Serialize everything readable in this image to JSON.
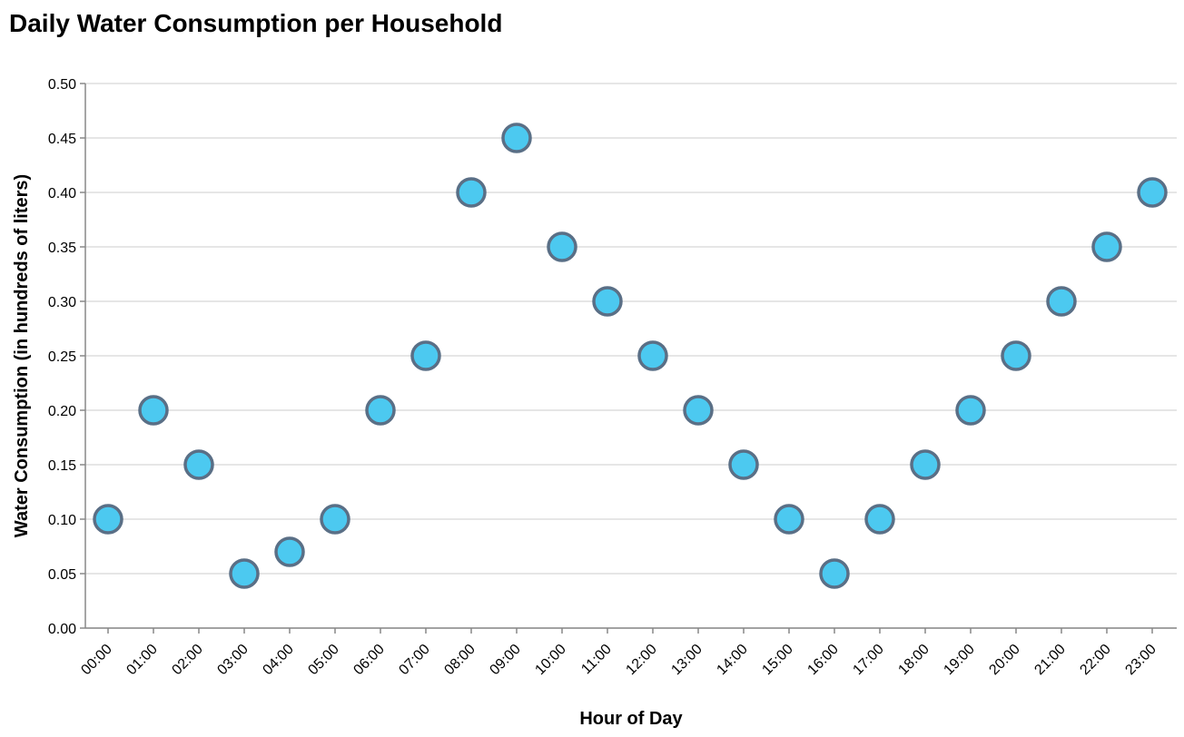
{
  "chart_data": {
    "type": "scatter",
    "title": "Daily Water Consumption per Household",
    "xlabel": "Hour of Day",
    "ylabel": "Water Consumption (in hundreds of liters)",
    "x": [
      "00:00",
      "01:00",
      "02:00",
      "03:00",
      "04:00",
      "05:00",
      "06:00",
      "07:00",
      "08:00",
      "09:00",
      "10:00",
      "11:00",
      "12:00",
      "13:00",
      "14:00",
      "15:00",
      "16:00",
      "17:00",
      "18:00",
      "19:00",
      "20:00",
      "21:00",
      "22:00",
      "23:00"
    ],
    "series": [
      {
        "values": [
          0.1,
          0.2,
          0.15,
          0.05,
          0.07,
          0.1,
          0.2,
          0.25,
          0.4,
          0.45,
          0.35,
          0.3,
          0.25,
          0.2,
          0.15,
          0.1,
          0.05,
          0.1,
          0.15,
          0.2,
          0.25,
          0.3,
          0.35,
          0.4
        ]
      }
    ],
    "ylim": [
      0,
      0.5
    ],
    "yticks": [
      "0.00",
      "0.05",
      "0.10",
      "0.15",
      "0.20",
      "0.25",
      "0.30",
      "0.35",
      "0.40",
      "0.45",
      "0.50"
    ],
    "grid": "horizontal",
    "colors": {
      "point_fill": "#4cc9f0",
      "point_stroke": "#5a6f86"
    }
  }
}
